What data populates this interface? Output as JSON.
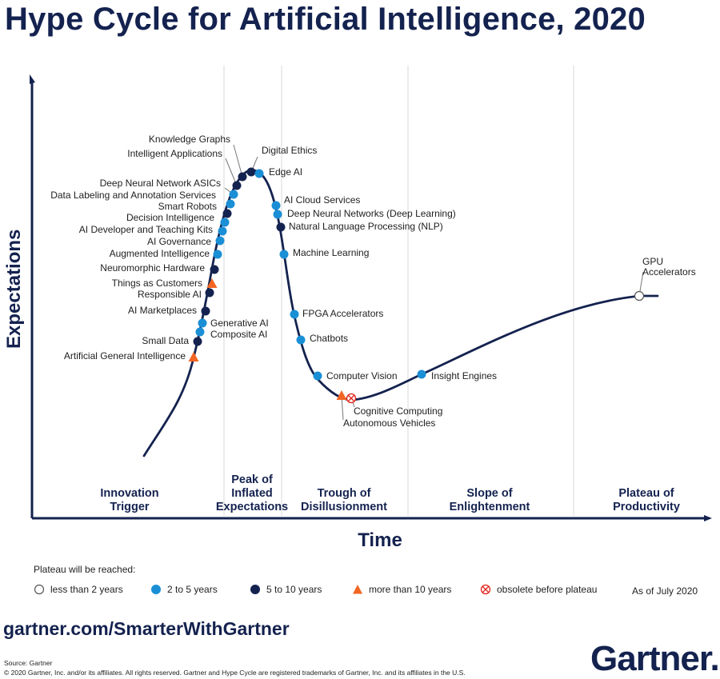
{
  "title": "Hype Cycle for Artificial Intelligence, 2020",
  "axes": {
    "y_label": "Expectations",
    "x_label": "Time"
  },
  "phases": [
    {
      "label": "Innovation\nTrigger"
    },
    {
      "label": "Peak of\nInflated\nExpectations"
    },
    {
      "label": "Trough of\nDisillusionment"
    },
    {
      "label": "Slope of\nEnlightenment"
    },
    {
      "label": "Plateau of\nProductivity"
    }
  ],
  "colors": {
    "navy": "#14224f",
    "less_than_2": "#ffffff",
    "two_to_five": "#1a8fd6",
    "five_to_ten": "#14224f",
    "more_than_10": "#f26522",
    "obsolete": "#e2231a"
  },
  "technologies": [
    {
      "label": "Artificial General Intelligence",
      "category": "more_than_10"
    },
    {
      "label": "Small Data",
      "category": "five_to_ten"
    },
    {
      "label": "Composite AI",
      "category": "two_to_five"
    },
    {
      "label": "Generative AI",
      "category": "two_to_five"
    },
    {
      "label": "AI Marketplaces",
      "category": "five_to_ten"
    },
    {
      "label": "Responsible AI",
      "category": "five_to_ten"
    },
    {
      "label": "Things as Customers",
      "category": "more_than_10"
    },
    {
      "label": "Neuromorphic Hardware",
      "category": "five_to_ten"
    },
    {
      "label": "Augmented Intelligence",
      "category": "two_to_five"
    },
    {
      "label": "AI Governance",
      "category": "two_to_five"
    },
    {
      "label": "AI Developer and Teaching Kits",
      "category": "two_to_five"
    },
    {
      "label": "Decision Intelligence",
      "category": "two_to_five"
    },
    {
      "label": "Smart Robots",
      "category": "five_to_ten"
    },
    {
      "label": "Data Labeling and Annotation Services",
      "category": "two_to_five"
    },
    {
      "label": "Deep Neural Network ASICs",
      "category": "two_to_five"
    },
    {
      "label": "Intelligent Applications",
      "category": "five_to_ten"
    },
    {
      "label": "Knowledge Graphs",
      "category": "five_to_ten"
    },
    {
      "label": "Digital Ethics",
      "category": "five_to_ten"
    },
    {
      "label": "Edge AI",
      "category": "two_to_five"
    },
    {
      "label": "AI Cloud Services",
      "category": "two_to_five"
    },
    {
      "label": "Deep Neural Networks (Deep Learning)",
      "category": "two_to_five"
    },
    {
      "label": "Natural Language Processing (NLP)",
      "category": "five_to_ten"
    },
    {
      "label": "Machine Learning",
      "category": "two_to_five"
    },
    {
      "label": "FPGA Accelerators",
      "category": "two_to_five"
    },
    {
      "label": "Chatbots",
      "category": "two_to_five"
    },
    {
      "label": "Computer Vision",
      "category": "two_to_five"
    },
    {
      "label": "Autonomous Vehicles",
      "category": "more_than_10"
    },
    {
      "label": "Cognitive Computing",
      "category": "obsolete"
    },
    {
      "label": "Insight Engines",
      "category": "two_to_five"
    },
    {
      "label": "GPU Accelerators",
      "category": "less_than_2"
    }
  ],
  "legend": {
    "heading": "Plateau will be reached:",
    "items": [
      {
        "label": "less than 2 years",
        "category": "less_than_2"
      },
      {
        "label": "2 to 5 years",
        "category": "two_to_five"
      },
      {
        "label": "5 to 10 years",
        "category": "five_to_ten"
      },
      {
        "label": "more than 10 years",
        "category": "more_than_10"
      },
      {
        "label": "obsolete before plateau",
        "category": "obsolete"
      }
    ],
    "as_of": "As of July 2020"
  },
  "footer": {
    "site": "gartner.com/SmarterWithGartner",
    "source": "Source: Gartner",
    "copyright": "© 2020 Gartner, Inc. and/or its affiliates. All rights reserved. Gartner and Hype Cycle are registered trademarks of Gartner, Inc. and its affiliates in the U.S.",
    "logo": "Gartner."
  }
}
